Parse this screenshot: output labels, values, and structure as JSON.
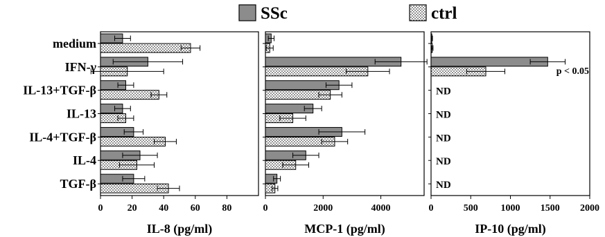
{
  "legend": [
    {
      "label": "SSc",
      "pattern": "solid-gray",
      "color": "#8c8c8c"
    },
    {
      "label": "ctrl",
      "pattern": "dots",
      "color": "#ffffff"
    }
  ],
  "categories": [
    "medium",
    "IFN-γ",
    "IL-13+TGF-β",
    "IL-13",
    "IL-4+TGF-β",
    "IL-4",
    "TGF-β"
  ],
  "chart_data": [
    {
      "type": "bar",
      "orientation": "horizontal",
      "xlabel": "IL-8 (pg/ml)",
      "xlim": [
        0,
        100
      ],
      "ticks": [
        0,
        20,
        40,
        60,
        80
      ],
      "tick_labels": [
        "0",
        "20",
        "40",
        "60",
        "80"
      ],
      "categories": [
        "medium",
        "IFN-γ",
        "IL-13+TGF-β",
        "IL-13",
        "IL-4+TGF-β",
        "IL-4",
        "TGF-β"
      ],
      "series": [
        {
          "name": "SSc",
          "values": [
            14,
            30,
            16,
            14,
            21,
            25,
            21
          ],
          "errors": [
            5,
            22,
            5,
            5,
            6,
            11,
            7
          ]
        },
        {
          "name": "ctrl",
          "values": [
            57,
            17,
            37,
            16,
            41,
            23,
            43
          ],
          "errors": [
            6,
            23,
            5,
            5,
            7,
            11,
            7
          ]
        }
      ],
      "annotations": []
    },
    {
      "type": "bar",
      "orientation": "horizontal",
      "xlabel": "MCP-1 (pg/ml)",
      "xlim": [
        0,
        5500
      ],
      "ticks": [
        0,
        2000,
        4000
      ],
      "tick_labels": [
        "0",
        "2000",
        "4000"
      ],
      "categories": [
        "medium",
        "IFN-γ",
        "IL-13+TGF-β",
        "IL-13",
        "IL-4+TGF-β",
        "IL-4",
        "TGF-β"
      ],
      "series": [
        {
          "name": "SSc",
          "values": [
            200,
            4700,
            2550,
            1650,
            2650,
            1400,
            400
          ],
          "errors": [
            100,
            900,
            450,
            300,
            800,
            450,
            120
          ]
        },
        {
          "name": "ctrl",
          "values": [
            150,
            3550,
            2250,
            950,
            2400,
            1050,
            330
          ],
          "errors": [
            120,
            750,
            400,
            450,
            450,
            450,
            100
          ]
        }
      ],
      "annotations": []
    },
    {
      "type": "bar",
      "orientation": "horizontal",
      "xlabel": "IP-10 (pg/ml)",
      "xlim": [
        0,
        2000
      ],
      "ticks": [
        0,
        500,
        1000,
        1500,
        2000
      ],
      "tick_labels": [
        "0",
        "500",
        "1000",
        "1500",
        "2000"
      ],
      "categories": [
        "medium",
        "IFN-γ",
        "IL-13+TGF-β",
        "IL-13",
        "IL-4+TGF-β",
        "IL-4",
        "TGF-β"
      ],
      "series": [
        {
          "name": "SSc",
          "values": [
            10,
            1470,
            null,
            null,
            null,
            null,
            null
          ],
          "errors": [
            8,
            220,
            null,
            null,
            null,
            null,
            null
          ]
        },
        {
          "name": "ctrl",
          "values": [
            15,
            690,
            null,
            null,
            null,
            null,
            null
          ],
          "errors": [
            10,
            240,
            null,
            null,
            null,
            null,
            null
          ]
        }
      ],
      "annotations": [
        {
          "category": "IFN-γ",
          "text": "p < 0.05"
        },
        {
          "category": "IL-13+TGF-β",
          "text": "ND"
        },
        {
          "category": "IL-13",
          "text": "ND"
        },
        {
          "category": "IL-4+TGF-β",
          "text": "ND"
        },
        {
          "category": "IL-4",
          "text": "ND"
        },
        {
          "category": "TGF-β",
          "text": "ND"
        }
      ]
    }
  ]
}
